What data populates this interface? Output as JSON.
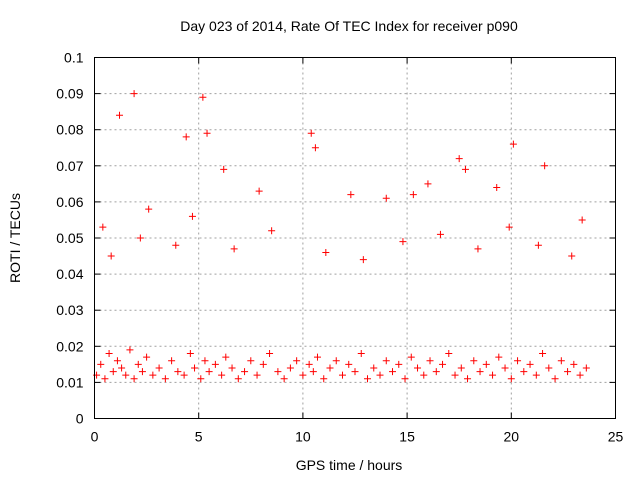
{
  "chart_data": {
    "type": "scatter",
    "title": "Day 023 of 2014, Rate Of TEC Index for receiver p090",
    "xlabel": "GPS time / hours",
    "ylabel": "ROTI / TECUs",
    "xlim": [
      0,
      25
    ],
    "ylim": [
      0,
      0.1
    ],
    "x_ticks": [
      0,
      5,
      10,
      15,
      20,
      25
    ],
    "y_ticks": [
      0,
      0.01,
      0.02,
      0.03,
      0.04,
      0.05,
      0.06,
      0.07,
      0.08,
      0.09,
      0.1
    ],
    "x_tick_labels": [
      "0",
      "5",
      "10",
      "15",
      "20",
      "25"
    ],
    "y_tick_labels": [
      "0",
      "0.01",
      "0.02",
      "0.03",
      "0.04",
      "0.05",
      "0.06",
      "0.07",
      "0.08",
      "0.09",
      "0.1"
    ],
    "grid": true,
    "marker": "plus",
    "marker_color": "#ff0000",
    "series": [
      {
        "x": [
          0.1,
          0.3,
          0.5,
          0.7,
          0.9,
          1.1,
          1.3,
          1.5,
          1.7,
          1.9,
          2.1,
          2.3,
          2.5,
          2.8,
          3.1,
          3.4,
          3.7,
          4.0,
          4.3,
          4.6,
          4.8,
          5.1,
          5.3,
          5.5,
          5.8,
          6.1,
          6.3,
          6.6,
          6.9,
          7.2,
          7.5,
          7.8,
          8.1,
          8.4,
          8.8,
          9.1,
          9.4,
          9.7,
          10.0,
          10.3,
          10.5,
          10.7,
          11.0,
          11.3,
          11.6,
          11.9,
          12.2,
          12.5,
          12.8,
          13.1,
          13.4,
          13.7,
          14.0,
          14.3,
          14.6,
          14.9,
          15.2,
          15.5,
          15.8,
          16.1,
          16.4,
          16.7,
          17.0,
          17.3,
          17.6,
          17.9,
          18.2,
          18.5,
          18.8,
          19.1,
          19.4,
          19.7,
          20.0,
          20.3,
          20.6,
          20.9,
          21.2,
          21.5,
          21.8,
          22.1,
          22.4,
          22.7,
          23.0,
          23.3,
          23.6,
          0.4,
          1.2,
          1.9,
          2.6,
          4.4,
          4.7,
          5.2,
          5.4,
          6.2,
          7.9,
          10.4,
          10.6,
          12.3,
          14.0,
          15.3,
          16.0,
          17.5,
          17.8,
          19.3,
          20.1,
          21.6,
          23.4,
          0.8,
          2.2,
          3.9,
          6.7,
          8.5,
          11.1,
          12.9,
          14.8,
          16.6,
          18.4,
          19.9,
          21.3,
          22.9
        ],
        "y": [
          0.012,
          0.015,
          0.011,
          0.018,
          0.013,
          0.016,
          0.014,
          0.012,
          0.019,
          0.011,
          0.015,
          0.013,
          0.017,
          0.012,
          0.014,
          0.011,
          0.016,
          0.013,
          0.012,
          0.018,
          0.014,
          0.011,
          0.016,
          0.013,
          0.015,
          0.012,
          0.017,
          0.014,
          0.011,
          0.013,
          0.016,
          0.012,
          0.015,
          0.018,
          0.013,
          0.011,
          0.014,
          0.016,
          0.012,
          0.015,
          0.013,
          0.017,
          0.011,
          0.014,
          0.016,
          0.012,
          0.015,
          0.013,
          0.018,
          0.011,
          0.014,
          0.012,
          0.016,
          0.013,
          0.015,
          0.011,
          0.017,
          0.014,
          0.012,
          0.016,
          0.013,
          0.015,
          0.018,
          0.012,
          0.014,
          0.011,
          0.016,
          0.013,
          0.015,
          0.012,
          0.017,
          0.014,
          0.011,
          0.016,
          0.013,
          0.015,
          0.012,
          0.018,
          0.014,
          0.011,
          0.016,
          0.013,
          0.015,
          0.012,
          0.014,
          0.053,
          0.084,
          0.09,
          0.058,
          0.078,
          0.056,
          0.089,
          0.079,
          0.069,
          0.063,
          0.079,
          0.075,
          0.062,
          0.061,
          0.062,
          0.065,
          0.072,
          0.069,
          0.064,
          0.076,
          0.07,
          0.055,
          0.045,
          0.05,
          0.048,
          0.047,
          0.052,
          0.046,
          0.044,
          0.049,
          0.051,
          0.047,
          0.053,
          0.048,
          0.045
        ]
      }
    ]
  }
}
